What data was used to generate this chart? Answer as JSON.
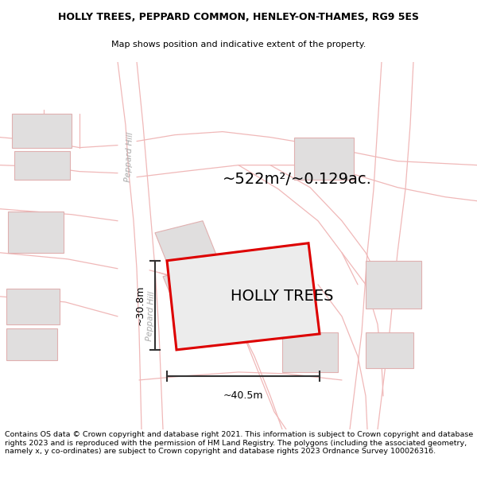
{
  "title_line1": "HOLLY TREES, PEPPARD COMMON, HENLEY-ON-THAMES, RG9 5ES",
  "title_line2": "Map shows position and indicative extent of the property.",
  "property_label": "HOLLY TREES",
  "area_label": "~522m²/~0.129ac.",
  "dim_horiz": "~40.5m",
  "dim_vert": "~30.8m",
  "road_label1": "Peppard Hill",
  "road_label2": "Peppard Hill",
  "footer_text": "Contains OS data © Crown copyright and database right 2021. This information is subject to Crown copyright and database rights 2023 and is reproduced with the permission of HM Land Registry. The polygons (including the associated geometry, namely x, y co-ordinates) are subject to Crown copyright and database rights 2023 Ordnance Survey 100026316.",
  "map_bg": "#ffffff",
  "road_color": "#f0b8b8",
  "property_fill": "#e8e8e8",
  "property_outline_color": "#dd0000",
  "neighbor_fill": "#e0dede",
  "neighbor_edge": "#e0b0b0",
  "dim_color": "#333333",
  "title_fontsize": 9.0,
  "subtitle_fontsize": 8.0,
  "footer_fontsize": 6.8,
  "road_label_color": "#aaaaaa",
  "prop_label_fontsize": 14,
  "area_label_fontsize": 14
}
